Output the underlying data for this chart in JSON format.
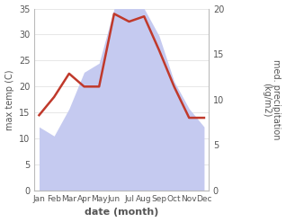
{
  "months": [
    "Jan",
    "Feb",
    "Mar",
    "Apr",
    "May",
    "Jun",
    "Jul",
    "Aug",
    "Sep",
    "Oct",
    "Nov",
    "Dec"
  ],
  "month_indices": [
    0,
    1,
    2,
    3,
    4,
    5,
    6,
    7,
    8,
    9,
    10,
    11
  ],
  "temperature": [
    14.5,
    18.0,
    22.5,
    20.0,
    20.0,
    34.0,
    32.5,
    33.5,
    27.0,
    20.0,
    14.0,
    14.0
  ],
  "precipitation": [
    7.0,
    6.0,
    9.0,
    13.0,
    14.0,
    20.0,
    20.0,
    20.0,
    17.0,
    12.0,
    9.0,
    7.0
  ],
  "temp_color": "#c0392b",
  "precip_color": "#c5caf0",
  "temp_ylim": [
    0,
    35
  ],
  "temp_yticks": [
    0,
    5,
    10,
    15,
    20,
    25,
    30,
    35
  ],
  "precip_ylim": [
    0,
    35
  ],
  "precip_yticks": [
    0,
    5,
    10,
    15,
    20
  ],
  "precip_ylabel": "med. precipitation\n(kg/m2)",
  "temp_ylabel": "max temp (C)",
  "xlabel": "date (month)",
  "bg_color": "#ffffff",
  "line_width": 1.8,
  "figsize": [
    3.18,
    2.47
  ],
  "dpi": 100,
  "spine_color": "#bbbbbb",
  "grid_color": "#dddddd",
  "text_color": "#555555"
}
